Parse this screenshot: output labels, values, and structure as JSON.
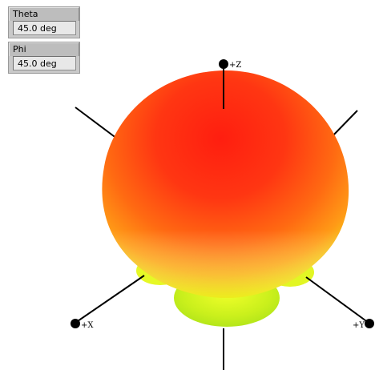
{
  "controls": {
    "theta": {
      "label": "Theta",
      "value": "45.0 deg"
    },
    "phi": {
      "label": "Phi",
      "value": "45.0 deg"
    }
  },
  "axes": {
    "z": "+Z",
    "x": "+X",
    "y": "+Y"
  },
  "colors": {
    "pattern_high": "#ff2a12",
    "pattern_mid": "#ff7a10",
    "pattern_low": "#e6f51a",
    "axis": "#000000"
  }
}
